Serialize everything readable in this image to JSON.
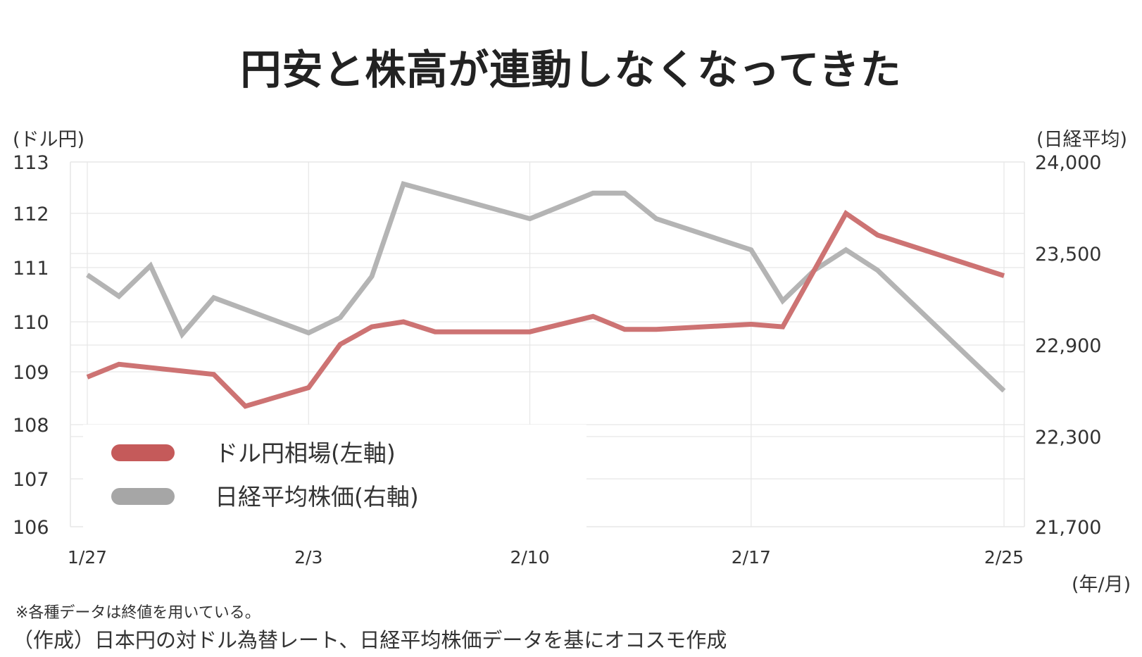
{
  "title": "円安と株高が連動しなくなってきた",
  "left_axis_unit": "(ドル円)",
  "right_axis_unit": "(日経平均)",
  "x_axis_unit": "(年/月)",
  "note": "※各種データは終値を用いている。",
  "source": "（作成）日本円の対ドル為替レート、日経平均株価データを基にオコスモ作成",
  "colors": {
    "usdjpy": "#cd7373",
    "nikkei": "#b4b4b4",
    "legend_usdjpy": "#c55a5a",
    "legend_nikkei": "#a6a6a6",
    "grid": "#e6e6e6"
  },
  "chart_data": {
    "type": "line",
    "title": "円安と株高が連動しなくなってきた",
    "xlabel": "(年/月)",
    "x_ticks": [
      "1/27",
      "2/3",
      "2/10",
      "2/17",
      "2/25"
    ],
    "y_left": {
      "label": "(ドル円)",
      "ylim": [
        106,
        113
      ],
      "ticks": [
        "113",
        "112",
        "111",
        "110",
        "109",
        "108",
        "107",
        "106"
      ]
    },
    "y_right": {
      "label": "(日経平均)",
      "ylim": [
        21700,
        24000
      ],
      "ticks": [
        "24,000",
        "23,500",
        "22,900",
        "22,300",
        "21,700"
      ]
    },
    "grid": true,
    "legend": "bottom-left",
    "series": [
      {
        "name": "ドル円相場(左軸)",
        "axis": "left",
        "color": "#cd7373",
        "points": [
          [
            "1/27",
            108.9
          ],
          [
            "1/28",
            109.15
          ],
          [
            "1/31",
            108.95
          ],
          [
            "2/1",
            108.35
          ],
          [
            "2/3",
            108.7
          ],
          [
            "2/4",
            109.55
          ],
          [
            "2/5",
            109.9
          ],
          [
            "2/6",
            110.0
          ],
          [
            "2/7",
            109.8
          ],
          [
            "2/10",
            109.8
          ],
          [
            "2/12",
            110.1
          ],
          [
            "2/13",
            109.85
          ],
          [
            "2/14",
            109.85
          ],
          [
            "2/17",
            109.95
          ],
          [
            "2/18",
            109.9
          ],
          [
            "2/20",
            112.0
          ],
          [
            "2/21",
            111.6
          ],
          [
            "2/25",
            110.85
          ]
        ]
      },
      {
        "name": "日経平均株価(右軸)",
        "axis": "right",
        "color": "#b4b4b4",
        "points": [
          [
            "1/27",
            23360
          ],
          [
            "1/28",
            23220
          ],
          [
            "1/29",
            23420
          ],
          [
            "1/30",
            22970
          ],
          [
            "1/31",
            23210
          ],
          [
            "2/3",
            22980
          ],
          [
            "2/4",
            23080
          ],
          [
            "2/5",
            23350
          ],
          [
            "2/6",
            23880
          ],
          [
            "2/10",
            23690
          ],
          [
            "2/12",
            23830
          ],
          [
            "2/13",
            23830
          ],
          [
            "2/14",
            23690
          ],
          [
            "2/17",
            23520
          ],
          [
            "2/18",
            23190
          ],
          [
            "2/19",
            23390
          ],
          [
            "2/20",
            23520
          ],
          [
            "2/21",
            23390
          ],
          [
            "2/25",
            22600
          ]
        ]
      }
    ]
  }
}
